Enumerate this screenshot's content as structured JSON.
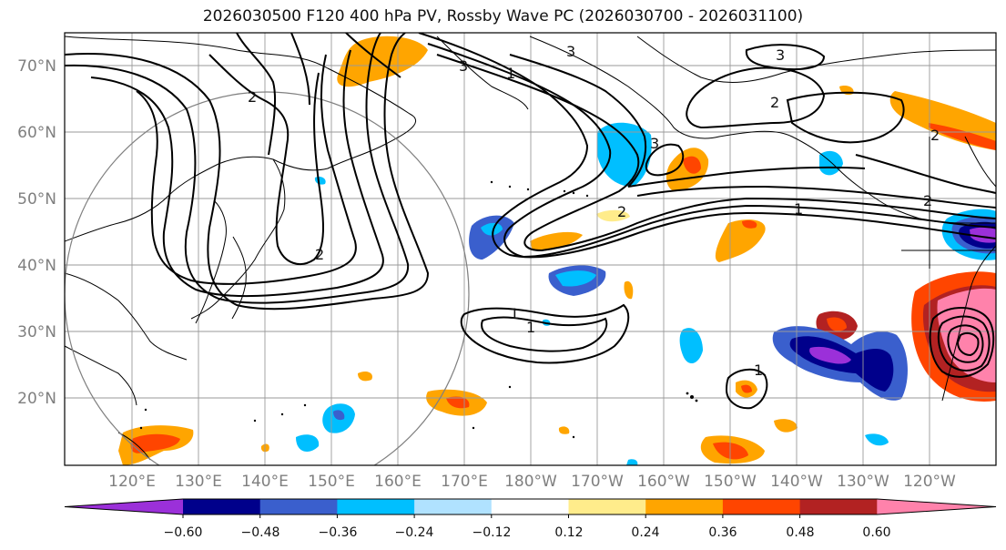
{
  "title": "2026030500 F120 400 hPa PV, Rossby Wave PC (2026030700 - 2026031100)",
  "lat_labels": [
    "70°N",
    "60°N",
    "50°N",
    "40°N",
    "30°N",
    "20°N"
  ],
  "lon_labels": [
    "120°E",
    "130°E",
    "140°E",
    "150°E",
    "160°E",
    "170°E",
    "180°W",
    "170°W",
    "160°W",
    "150°W",
    "140°W",
    "130°W",
    "120°W"
  ],
  "colorbar": {
    "ticks": [
      "−0.60",
      "−0.48",
      "−0.36",
      "−0.24",
      "−0.12",
      "0.12",
      "0.24",
      "0.36",
      "0.48",
      "0.60"
    ],
    "colors": [
      "#9b30d9",
      "#00008b",
      "#3a5fcd",
      "#00bfff",
      "#b0e2ff",
      "#ffffff",
      "#ffec8b",
      "#ffa500",
      "#ff4500",
      "#b22222",
      "#ff82ab"
    ]
  },
  "contour_labels": [
    "1",
    "1",
    "1",
    "1",
    "1",
    "2",
    "2",
    "2",
    "2",
    "2",
    "2",
    "3",
    "3",
    "3",
    "3"
  ]
}
